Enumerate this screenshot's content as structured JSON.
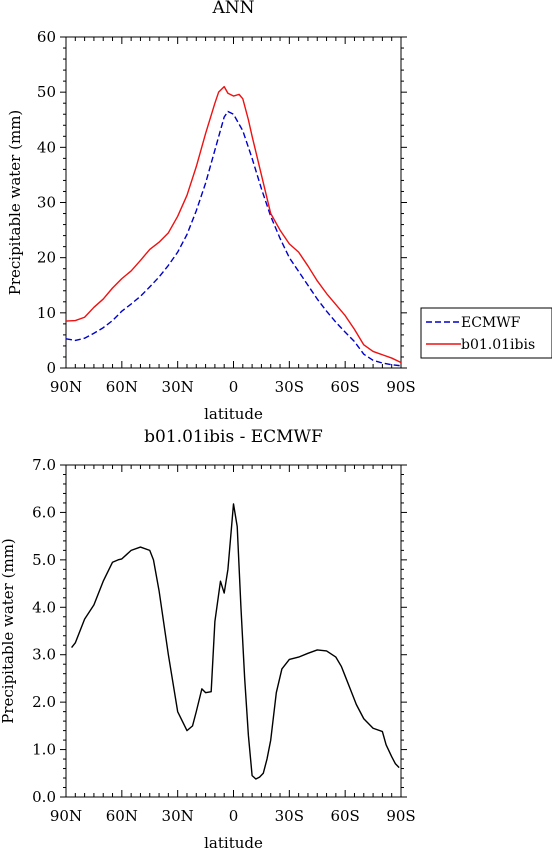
{
  "chart_data": [
    {
      "type": "line",
      "title": "ANN",
      "xlabel": "latitude",
      "ylabel": "Precipitable water (mm)",
      "xlim": [
        90,
        -90
      ],
      "ylim": [
        0,
        60
      ],
      "x_ticks": [
        90,
        60,
        30,
        0,
        -30,
        -60,
        -90
      ],
      "x_tick_labels": [
        "90N",
        "60N",
        "30N",
        "0",
        "30S",
        "60S",
        "90S"
      ],
      "y_ticks": [
        0,
        10,
        20,
        30,
        40,
        50,
        60
      ],
      "y_tick_labels": [
        "0",
        "10",
        "20",
        "30",
        "40",
        "50",
        "60"
      ],
      "legend": "outside-right",
      "series": [
        {
          "name": "ECMWF",
          "color": "#0000cc",
          "dash": true,
          "x": [
            90,
            85,
            80,
            75,
            70,
            65,
            60,
            55,
            50,
            45,
            40,
            35,
            30,
            25,
            20,
            15,
            10,
            5,
            3,
            0,
            -5,
            -10,
            -15,
            -20,
            -25,
            -30,
            -35,
            -40,
            -45,
            -50,
            -55,
            -60,
            -65,
            -70,
            -75,
            -80,
            -85,
            -90
          ],
          "y": [
            5.3,
            5.0,
            5.4,
            6.3,
            7.3,
            8.6,
            10.3,
            11.6,
            13.0,
            14.7,
            16.5,
            18.6,
            21.0,
            24.2,
            28.5,
            33.5,
            39.5,
            45.5,
            46.5,
            46.0,
            43.0,
            38.0,
            32.5,
            27.5,
            23.5,
            20.0,
            17.5,
            15.0,
            12.5,
            10.3,
            8.3,
            6.5,
            4.8,
            2.5,
            1.4,
            0.9,
            0.6,
            0.4
          ]
        },
        {
          "name": "b01.01ibis",
          "color": "#ee1111",
          "dash": false,
          "x": [
            90,
            85,
            80,
            75,
            70,
            65,
            60,
            55,
            50,
            45,
            40,
            35,
            30,
            25,
            20,
            15,
            10,
            8,
            5,
            3,
            0,
            -3,
            -5,
            -8,
            -10,
            -15,
            -20,
            -25,
            -30,
            -35,
            -40,
            -45,
            -50,
            -55,
            -60,
            -65,
            -70,
            -75,
            -80,
            -85,
            -90
          ],
          "y": [
            8.5,
            8.6,
            9.2,
            11.0,
            12.5,
            14.5,
            16.2,
            17.6,
            19.5,
            21.5,
            22.8,
            24.5,
            27.5,
            31.3,
            36.5,
            42.5,
            48.0,
            50.0,
            51.0,
            49.8,
            49.3,
            49.6,
            48.8,
            45.0,
            42.0,
            35.0,
            28.0,
            25.0,
            22.5,
            21.0,
            18.5,
            15.8,
            13.5,
            11.5,
            9.5,
            7.0,
            4.2,
            3.0,
            2.4,
            1.8,
            1.0
          ]
        }
      ]
    },
    {
      "type": "line",
      "title": "b01.01ibis - ECMWF",
      "xlabel": "latitude",
      "ylabel": "Precipitable water (mm)",
      "xlim": [
        90,
        -90
      ],
      "ylim": [
        0,
        7
      ],
      "x_ticks": [
        90,
        60,
        30,
        0,
        -30,
        -60,
        -90
      ],
      "x_tick_labels": [
        "90N",
        "60N",
        "30N",
        "0",
        "30S",
        "60S",
        "90S"
      ],
      "y_ticks": [
        0,
        1,
        2,
        3,
        4,
        5,
        6,
        7
      ],
      "y_tick_labels": [
        "0.0",
        "1.0",
        "2.0",
        "3.0",
        "4.0",
        "5.0",
        "6.0",
        "7.0"
      ],
      "series": [
        {
          "color": "#000000",
          "dash": false,
          "x": [
            87,
            85,
            80,
            75,
            70,
            65,
            62,
            60,
            55,
            50,
            45,
            43,
            40,
            35,
            30,
            25,
            22,
            20,
            17,
            15,
            12,
            10,
            7,
            5,
            3,
            0,
            -2,
            -4,
            -6,
            -8,
            -10,
            -12,
            -14,
            -16,
            -18,
            -20,
            -23,
            -26,
            -30,
            -35,
            -40,
            -45,
            -50,
            -55,
            -58,
            -60,
            -63,
            -66,
            -70,
            -75,
            -80,
            -82,
            -85,
            -87,
            -89
          ],
          "y": [
            3.15,
            3.25,
            3.75,
            4.05,
            4.55,
            4.95,
            5.0,
            5.02,
            5.2,
            5.27,
            5.2,
            5.0,
            4.35,
            3.0,
            1.8,
            1.4,
            1.5,
            1.8,
            2.28,
            2.2,
            2.22,
            3.7,
            4.55,
            4.3,
            4.8,
            6.18,
            5.7,
            4.0,
            2.5,
            1.3,
            0.45,
            0.38,
            0.42,
            0.5,
            0.8,
            1.2,
            2.2,
            2.7,
            2.9,
            2.95,
            3.03,
            3.1,
            3.08,
            2.95,
            2.75,
            2.55,
            2.25,
            1.95,
            1.65,
            1.45,
            1.38,
            1.1,
            0.85,
            0.7,
            0.62
          ]
        }
      ]
    }
  ]
}
